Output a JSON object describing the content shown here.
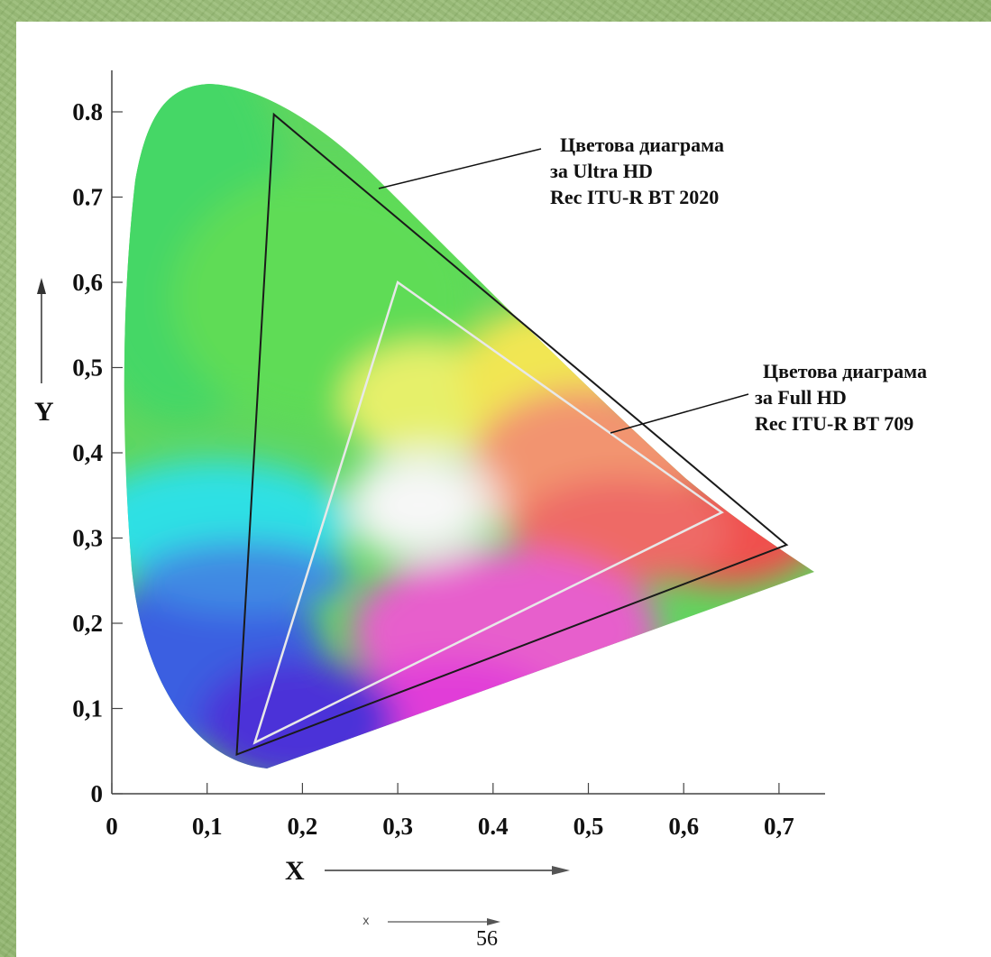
{
  "y_ticks": [
    "0",
    "0,1",
    "0,2",
    "0,3",
    "0,4",
    "0,5",
    "0,6",
    "0.7",
    "0.8"
  ],
  "x_ticks": [
    "0",
    "0,1",
    "0,2",
    "0,3",
    "0.4",
    "0,5",
    "0,6",
    "0,7"
  ],
  "axis": {
    "y_label": "Y",
    "x_label": "X",
    "small_x_label": "x"
  },
  "annotations": {
    "rec2020": [
      "Цветова диаграма",
      "за Ultra HD",
      "Rec ITU-R BT 2020"
    ],
    "rec709": [
      "Цветова диаграма",
      "за Full HD",
      "Rec ITU-R BT 709"
    ]
  },
  "page_number": "56",
  "gamuts": {
    "rec2020": {
      "red": [
        0.708,
        0.292
      ],
      "green": [
        0.17,
        0.797
      ],
      "blue": [
        0.131,
        0.046
      ],
      "stroke": "#1a1a1a"
    },
    "rec709": {
      "red": [
        0.64,
        0.33
      ],
      "green": [
        0.3,
        0.6
      ],
      "blue": [
        0.15,
        0.06
      ],
      "stroke": "#e8e8e8"
    }
  },
  "colors": {
    "background": "#9ec07e",
    "panel": "#ffffff"
  }
}
